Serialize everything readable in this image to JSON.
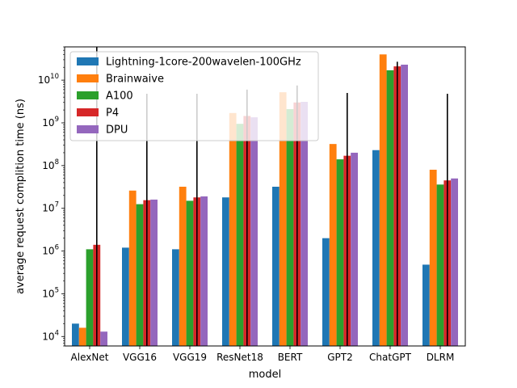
{
  "chart_data": {
    "type": "bar",
    "title": "",
    "xlabel": "model",
    "ylabel": "average request complition time (ns)",
    "yscale": "log",
    "ylim": [
      6000,
      60000000000
    ],
    "yticks": [
      {
        "value": 10000,
        "base": "10",
        "exp": "4"
      },
      {
        "value": 100000,
        "base": "10",
        "exp": "5"
      },
      {
        "value": 1000000,
        "base": "10",
        "exp": "6"
      },
      {
        "value": 10000000,
        "base": "10",
        "exp": "7"
      },
      {
        "value": 100000000,
        "base": "10",
        "exp": "8"
      },
      {
        "value": 1000000000,
        "base": "10",
        "exp": "9"
      },
      {
        "value": 10000000000,
        "base": "10",
        "exp": "10"
      }
    ],
    "categories": [
      "AlexNet",
      "VGG16",
      "VGG19",
      "ResNet18",
      "BERT",
      "GPT2",
      "ChatGPT",
      "DLRM"
    ],
    "legend_position": "top-left",
    "series": [
      {
        "name": "Lightning-1core-200wavelen-100GHz",
        "color": "#1f77b4",
        "values": [
          20000,
          1200000,
          1100000,
          18000000,
          32000000,
          2000000,
          230000000,
          480000
        ]
      },
      {
        "name": "Brainwaive",
        "color": "#ff7f0e",
        "values": [
          16000,
          26000000,
          32000000,
          1700000000,
          5200000000,
          320000000,
          40000000000,
          80000000
        ]
      },
      {
        "name": "A100",
        "color": "#2ca02c",
        "values": [
          1100000,
          12500000,
          15000000,
          950000000,
          2100000000,
          140000000,
          17000000000,
          36000000
        ]
      },
      {
        "name": "P4",
        "color": "#d62728",
        "values": [
          1400000,
          15500000,
          18000000,
          1450000000,
          3000000000,
          170000000,
          21000000000,
          45000000
        ]
      },
      {
        "name": "DPU",
        "color": "#9467bd",
        "values": [
          13000,
          16000000,
          19000000,
          1350000000,
          3100000000,
          200000000,
          23000000000,
          50000000
        ]
      }
    ],
    "error_bars": [
      {
        "category": "AlexNet",
        "series": "P4",
        "low": 6000,
        "high": 60000000000
      },
      {
        "category": "VGG16",
        "series": "P4",
        "low": 6000,
        "high": 4800000000
      },
      {
        "category": "VGG19",
        "series": "P4",
        "low": 6000,
        "high": 4800000000
      },
      {
        "category": "ResNet18",
        "series": "P4",
        "low": 6000,
        "high": 6000000000
      },
      {
        "category": "BERT",
        "series": "P4",
        "low": 6000,
        "high": 7500000000
      },
      {
        "category": "GPT2",
        "series": "P4",
        "low": 6000,
        "high": 5000000000
      },
      {
        "category": "ChatGPT",
        "series": "P4",
        "low": 6000,
        "high": 27000000000
      },
      {
        "category": "DLRM",
        "series": "P4",
        "low": 6000,
        "high": 4800000000
      }
    ]
  }
}
